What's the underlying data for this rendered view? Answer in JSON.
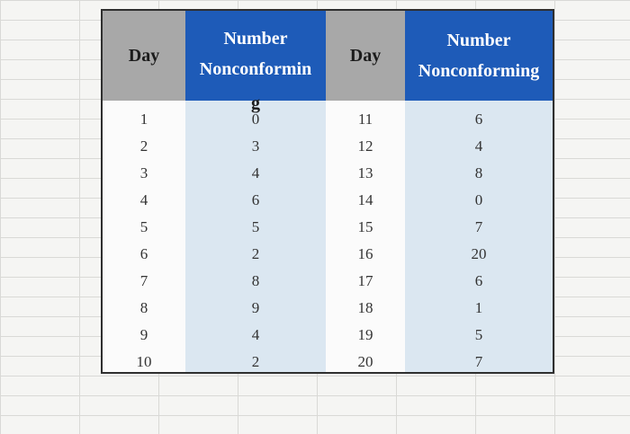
{
  "table": {
    "headers": {
      "day1": "Day",
      "num1_line1": "Number",
      "num1_line2": "Nonconformin",
      "num1_overflow": "g",
      "day2": "Day",
      "num2_line1": "Number",
      "num2_line2": "Nonconforming"
    },
    "days1": [
      "1",
      "2",
      "3",
      "4",
      "5",
      "6",
      "7",
      "8",
      "9",
      "10"
    ],
    "counts1": [
      "0",
      "3",
      "4",
      "6",
      "5",
      "2",
      "8",
      "9",
      "4",
      "2"
    ],
    "days2": [
      "11",
      "12",
      "13",
      "14",
      "15",
      "16",
      "17",
      "18",
      "19",
      "20"
    ],
    "counts2": [
      "6",
      "4",
      "8",
      "0",
      "7",
      "20",
      "6",
      "1",
      "5",
      "7"
    ]
  },
  "colors": {
    "header_gray": "#a8a8a8",
    "header_blue": "#1e5bb8",
    "body_lightblue": "#dbe7f1"
  }
}
